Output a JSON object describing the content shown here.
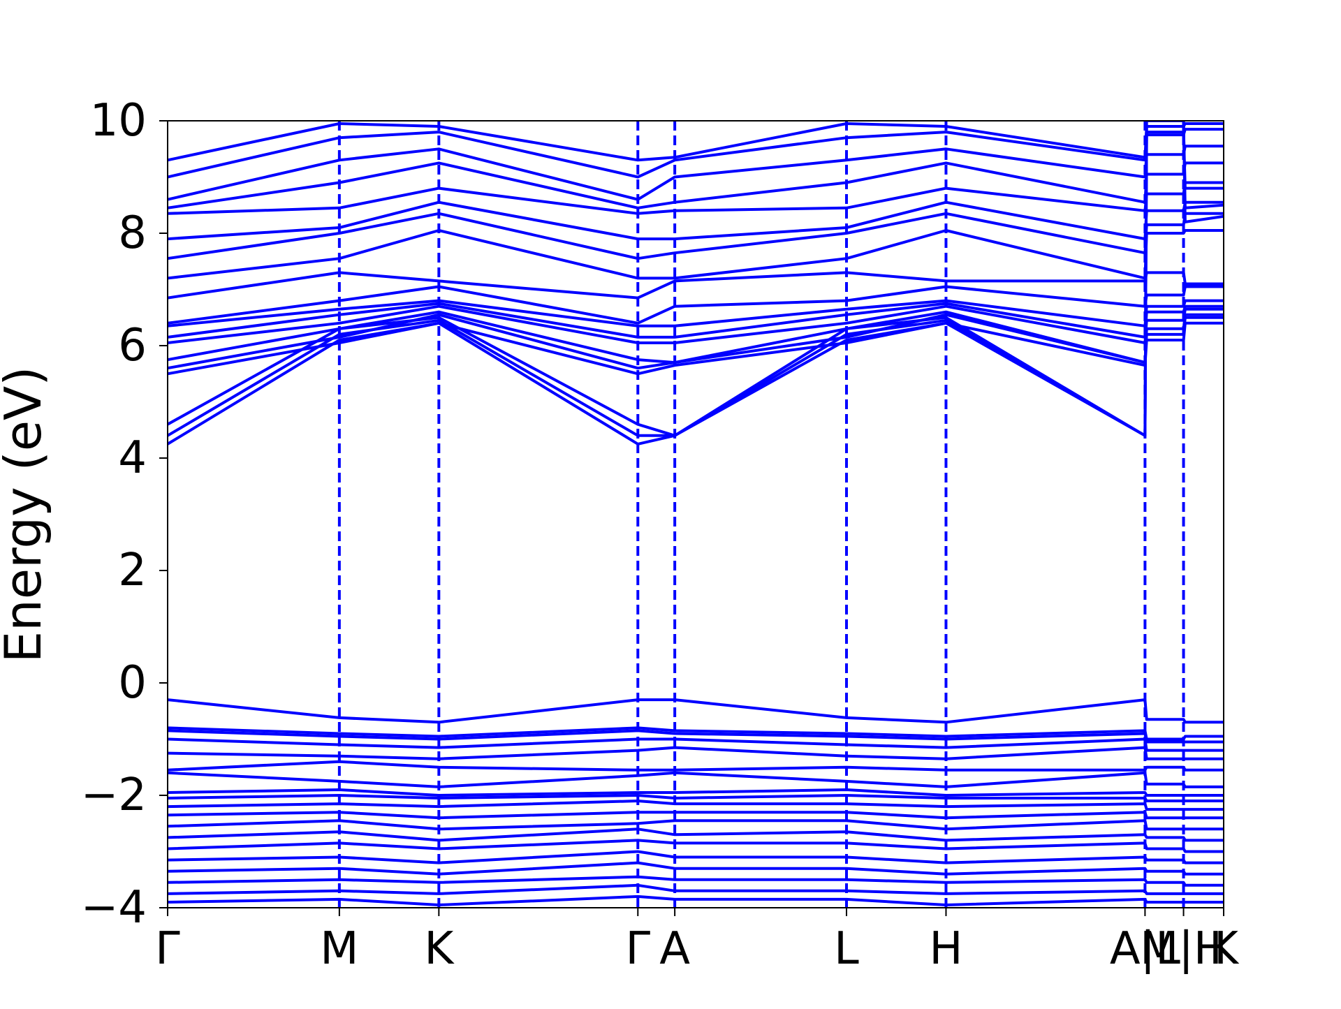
{
  "chart_data": {
    "type": "line",
    "title": "",
    "xlabel": "",
    "ylabel": "Energy (eV)",
    "ylim": [
      -4,
      10
    ],
    "yticks": [
      -4,
      -2,
      0,
      2,
      4,
      6,
      8,
      10
    ],
    "ytick_labels": [
      "−4",
      "−2",
      "0",
      "2",
      "4",
      "6",
      "8",
      "10"
    ],
    "xlim": [
      0,
      6.58
    ],
    "high_symmetry_points": [
      {
        "label": "Γ",
        "x": 0.0
      },
      {
        "label": "M",
        "x": 1.07
      },
      {
        "label": "K",
        "x": 1.69
      },
      {
        "label": "Γ",
        "x": 2.93
      },
      {
        "label": "A",
        "x": 3.16
      },
      {
        "label": "L",
        "x": 4.23
      },
      {
        "label": "H",
        "x": 4.85
      },
      {
        "label": "A|L",
        "x": 6.09
      },
      {
        "label": "M|H",
        "x": 6.33
      },
      {
        "label": "K",
        "x": 6.58
      }
    ],
    "grid": false,
    "line_color": "#0000ff",
    "vline_style": "dashed",
    "series": [
      {
        "x": [
          0,
          1.07,
          1.69,
          2.93,
          3.16,
          4.23,
          4.85,
          6.09,
          6.1,
          6.33,
          6.34,
          6.58
        ],
        "y": [
          4.25,
          6.1,
          6.4,
          4.25,
          4.4,
          6.1,
          6.4,
          4.4,
          10.0,
          10.0,
          8.2,
          8.3
        ]
      },
      {
        "x": [
          0,
          1.07,
          1.69,
          2.93,
          3.16,
          4.23,
          4.85,
          6.09,
          6.1,
          6.33,
          6.34,
          6.58
        ],
        "y": [
          4.4,
          6.2,
          6.45,
          4.4,
          4.4,
          6.2,
          6.45,
          4.4,
          9.9,
          9.9,
          8.45,
          8.5
        ]
      },
      {
        "x": [
          0,
          1.07,
          1.69,
          2.93,
          3.16,
          4.23,
          4.85,
          6.09,
          6.1,
          6.33,
          6.34,
          6.58
        ],
        "y": [
          4.6,
          6.3,
          6.5,
          4.6,
          4.4,
          6.3,
          6.5,
          4.4,
          9.8,
          9.8,
          8.8,
          8.8
        ]
      },
      {
        "x": [
          0,
          1.07,
          1.69,
          2.93,
          3.16,
          4.23,
          4.85,
          6.09,
          6.1,
          6.33,
          6.34,
          6.58
        ],
        "y": [
          5.5,
          6.05,
          6.4,
          5.5,
          5.65,
          6.05,
          6.4,
          5.65,
          6.1,
          6.1,
          6.4,
          6.4
        ]
      },
      {
        "x": [
          0,
          1.07,
          1.69,
          2.93,
          3.16,
          4.23,
          4.85,
          6.09,
          6.1,
          6.33,
          6.34,
          6.58
        ],
        "y": [
          5.6,
          6.15,
          6.55,
          5.6,
          5.7,
          6.15,
          6.55,
          5.7,
          6.2,
          6.2,
          6.5,
          6.5
        ]
      },
      {
        "x": [
          0,
          1.07,
          1.69,
          2.93,
          3.16,
          4.23,
          4.85,
          6.09,
          6.1,
          6.33,
          6.34,
          6.58
        ],
        "y": [
          5.75,
          6.3,
          6.6,
          5.75,
          5.7,
          6.3,
          6.6,
          5.7,
          6.3,
          6.3,
          6.55,
          6.55
        ]
      },
      {
        "x": [
          0,
          1.07,
          1.69,
          2.93,
          3.16,
          4.23,
          4.85,
          6.09,
          6.1,
          6.33,
          6.34,
          6.58
        ],
        "y": [
          6.05,
          6.4,
          6.7,
          6.05,
          6.05,
          6.4,
          6.7,
          6.05,
          6.45,
          6.45,
          6.65,
          6.65
        ]
      },
      {
        "x": [
          0,
          1.07,
          1.69,
          2.93,
          3.16,
          4.23,
          4.85,
          6.09,
          6.1,
          6.33,
          6.34,
          6.58
        ],
        "y": [
          6.15,
          6.55,
          6.75,
          6.15,
          6.15,
          6.55,
          6.75,
          6.15,
          6.6,
          6.6,
          6.7,
          6.7
        ]
      },
      {
        "x": [
          0,
          1.07,
          1.69,
          2.93,
          3.16,
          4.23,
          4.85,
          6.09,
          6.1,
          6.33,
          6.34,
          6.58
        ],
        "y": [
          6.35,
          6.65,
          6.8,
          6.35,
          6.35,
          6.65,
          6.8,
          6.35,
          6.7,
          6.7,
          6.8,
          6.8
        ]
      },
      {
        "x": [
          0,
          1.07,
          1.69,
          2.93,
          3.16,
          4.23,
          4.85,
          6.09,
          6.1,
          6.33,
          6.34,
          6.58
        ],
        "y": [
          6.4,
          6.8,
          7.05,
          6.4,
          6.7,
          6.8,
          7.05,
          6.7,
          6.9,
          6.9,
          7.05,
          7.05
        ]
      },
      {
        "x": [
          0,
          1.07,
          1.69,
          2.93,
          3.16,
          4.23,
          4.85,
          6.09,
          6.1,
          6.33,
          6.34,
          6.58
        ],
        "y": [
          6.85,
          7.3,
          7.15,
          6.85,
          7.15,
          7.3,
          7.15,
          7.15,
          7.3,
          7.3,
          7.1,
          7.1
        ]
      },
      {
        "x": [
          0,
          1.07,
          1.69,
          2.93,
          3.16,
          4.23,
          4.85,
          6.09,
          6.1,
          6.33,
          6.34,
          6.58
        ],
        "y": [
          7.2,
          7.55,
          8.05,
          7.2,
          7.2,
          7.55,
          8.05,
          7.2,
          8.0,
          8.0,
          8.05,
          8.05
        ]
      },
      {
        "x": [
          0,
          1.07,
          1.69,
          2.93,
          3.16,
          4.23,
          4.85,
          6.09,
          6.1,
          6.33,
          6.34,
          6.58
        ],
        "y": [
          7.55,
          8.0,
          8.35,
          7.55,
          7.65,
          8.0,
          8.35,
          7.65,
          8.15,
          8.15,
          8.35,
          8.35
        ]
      },
      {
        "x": [
          0,
          1.07,
          1.69,
          2.93,
          3.16,
          4.23,
          4.85,
          6.09,
          6.1,
          6.33,
          6.34,
          6.58
        ],
        "y": [
          7.9,
          8.1,
          8.55,
          7.9,
          7.9,
          8.1,
          8.55,
          7.9,
          8.4,
          8.4,
          8.55,
          8.55
        ]
      },
      {
        "x": [
          0,
          1.07,
          1.69,
          2.93,
          3.16,
          4.23,
          4.85,
          6.09,
          6.1,
          6.33,
          6.34,
          6.58
        ],
        "y": [
          8.35,
          8.45,
          8.8,
          8.35,
          8.4,
          8.45,
          8.8,
          8.4,
          8.7,
          8.7,
          8.9,
          8.9
        ]
      },
      {
        "x": [
          0,
          1.07,
          1.69,
          2.93,
          3.16,
          4.23,
          4.85,
          6.09,
          6.1,
          6.33,
          6.34,
          6.58
        ],
        "y": [
          8.45,
          8.9,
          9.25,
          8.45,
          8.55,
          8.9,
          9.25,
          8.55,
          9.05,
          9.05,
          9.25,
          9.25
        ]
      },
      {
        "x": [
          0,
          1.07,
          1.69,
          2.93,
          3.16,
          4.23,
          4.85,
          6.09,
          6.1,
          6.33,
          6.34,
          6.58
        ],
        "y": [
          8.6,
          9.3,
          9.5,
          8.6,
          9.0,
          9.3,
          9.5,
          9.0,
          9.4,
          9.4,
          9.55,
          9.55
        ]
      },
      {
        "x": [
          0,
          1.07,
          1.69,
          2.93,
          3.16,
          4.23,
          4.85,
          6.09,
          6.1,
          6.33,
          6.34,
          6.58
        ],
        "y": [
          9.0,
          9.7,
          9.8,
          9.0,
          9.3,
          9.7,
          9.8,
          9.3,
          9.75,
          9.75,
          9.85,
          9.85
        ]
      },
      {
        "x": [
          0,
          1.07,
          1.69,
          2.93,
          3.16,
          4.23,
          4.85,
          6.09,
          6.1,
          6.33,
          6.34,
          6.58
        ],
        "y": [
          9.3,
          9.95,
          9.9,
          9.3,
          9.35,
          9.95,
          9.9,
          9.35,
          9.9,
          9.9,
          9.95,
          9.95
        ]
      },
      {
        "x": [
          0,
          1.07,
          1.69,
          2.93,
          3.16,
          4.23,
          4.85,
          6.09,
          6.1,
          6.33,
          6.34,
          6.58
        ],
        "y": [
          -0.3,
          -0.62,
          -0.7,
          -0.3,
          -0.3,
          -0.62,
          -0.7,
          -0.3,
          -0.65,
          -0.65,
          -0.7,
          -0.7
        ]
      },
      {
        "x": [
          0,
          1.07,
          1.69,
          2.93,
          3.16,
          4.23,
          4.85,
          6.09,
          6.1,
          6.33,
          6.34,
          6.58
        ],
        "y": [
          -0.8,
          -0.9,
          -0.95,
          -0.8,
          -0.85,
          -0.9,
          -0.95,
          -0.85,
          -1.0,
          -1.0,
          -0.95,
          -0.95
        ]
      },
      {
        "x": [
          0,
          1.07,
          1.69,
          2.93,
          3.16,
          4.23,
          4.85,
          6.09,
          6.1,
          6.33,
          6.34,
          6.58
        ],
        "y": [
          -0.85,
          -0.95,
          -1.0,
          -0.85,
          -0.9,
          -0.95,
          -1.0,
          -0.9,
          -1.05,
          -1.05,
          -1.05,
          -1.05
        ]
      },
      {
        "x": [
          0,
          1.07,
          1.69,
          2.93,
          3.16,
          4.23,
          4.85,
          6.09,
          6.1,
          6.33,
          6.34,
          6.58
        ],
        "y": [
          -1.0,
          -1.1,
          -1.15,
          -1.0,
          -1.0,
          -1.1,
          -1.15,
          -1.0,
          -1.2,
          -1.2,
          -1.2,
          -1.2
        ]
      },
      {
        "x": [
          0,
          1.07,
          1.69,
          2.93,
          3.16,
          4.23,
          4.85,
          6.09,
          6.1,
          6.33,
          6.34,
          6.58
        ],
        "y": [
          -1.25,
          -1.3,
          -1.35,
          -1.2,
          -1.15,
          -1.3,
          -1.35,
          -1.15,
          -1.35,
          -1.35,
          -1.35,
          -1.35
        ]
      },
      {
        "x": [
          0,
          1.07,
          1.69,
          2.93,
          3.16,
          4.23,
          4.85,
          6.09,
          6.1,
          6.33,
          6.34,
          6.58
        ],
        "y": [
          -1.55,
          -1.4,
          -1.5,
          -1.55,
          -1.55,
          -1.5,
          -1.55,
          -1.55,
          -1.5,
          -1.5,
          -1.55,
          -1.55
        ]
      },
      {
        "x": [
          0,
          1.07,
          1.69,
          2.93,
          3.16,
          4.23,
          4.85,
          6.09,
          6.1,
          6.33,
          6.34,
          6.58
        ],
        "y": [
          -1.6,
          -1.75,
          -1.85,
          -1.65,
          -1.6,
          -1.75,
          -1.85,
          -1.6,
          -1.8,
          -1.8,
          -1.85,
          -1.85
        ]
      },
      {
        "x": [
          0,
          1.07,
          1.69,
          2.93,
          3.16,
          4.23,
          4.85,
          6.09,
          6.1,
          6.33,
          6.34,
          6.58
        ],
        "y": [
          -1.95,
          -1.9,
          -2.0,
          -1.95,
          -1.95,
          -1.9,
          -2.0,
          -1.95,
          -2.0,
          -2.0,
          -2.0,
          -2.0
        ]
      },
      {
        "x": [
          0,
          1.07,
          1.69,
          2.93,
          3.16,
          4.23,
          4.85,
          6.09,
          6.1,
          6.33,
          6.34,
          6.58
        ],
        "y": [
          -2.05,
          -2.0,
          -2.05,
          -2.0,
          -2.05,
          -2.0,
          -2.05,
          -2.05,
          -2.1,
          -2.1,
          -2.1,
          -2.1
        ]
      },
      {
        "x": [
          0,
          1.07,
          1.69,
          2.93,
          3.16,
          4.23,
          4.85,
          6.09,
          6.1,
          6.33,
          6.34,
          6.58
        ],
        "y": [
          -2.2,
          -2.15,
          -2.2,
          -2.1,
          -2.15,
          -2.15,
          -2.2,
          -2.15,
          -2.25,
          -2.25,
          -2.25,
          -2.25
        ]
      },
      {
        "x": [
          0,
          1.07,
          1.69,
          2.93,
          3.16,
          4.23,
          4.85,
          6.09,
          6.1,
          6.33,
          6.34,
          6.58
        ],
        "y": [
          -2.35,
          -2.3,
          -2.4,
          -2.3,
          -2.3,
          -2.3,
          -2.4,
          -2.3,
          -2.4,
          -2.4,
          -2.4,
          -2.4
        ]
      },
      {
        "x": [
          0,
          1.07,
          1.69,
          2.93,
          3.16,
          4.23,
          4.85,
          6.09,
          6.1,
          6.33,
          6.34,
          6.58
        ],
        "y": [
          -2.55,
          -2.45,
          -2.6,
          -2.5,
          -2.45,
          -2.45,
          -2.6,
          -2.45,
          -2.6,
          -2.6,
          -2.6,
          -2.6
        ]
      },
      {
        "x": [
          0,
          1.07,
          1.69,
          2.93,
          3.16,
          4.23,
          4.85,
          6.09,
          6.1,
          6.33,
          6.34,
          6.58
        ],
        "y": [
          -2.75,
          -2.65,
          -2.8,
          -2.6,
          -2.7,
          -2.65,
          -2.8,
          -2.7,
          -2.75,
          -2.75,
          -2.8,
          -2.8
        ]
      },
      {
        "x": [
          0,
          1.07,
          1.69,
          2.93,
          3.16,
          4.23,
          4.85,
          6.09,
          6.1,
          6.33,
          6.34,
          6.58
        ],
        "y": [
          -2.95,
          -2.85,
          -2.95,
          -2.8,
          -2.85,
          -2.85,
          -2.95,
          -2.85,
          -2.95,
          -2.95,
          -3.0,
          -3.0
        ]
      },
      {
        "x": [
          0,
          1.07,
          1.69,
          2.93,
          3.16,
          4.23,
          4.85,
          6.09,
          6.1,
          6.33,
          6.34,
          6.58
        ],
        "y": [
          -3.15,
          -3.1,
          -3.2,
          -3.0,
          -3.1,
          -3.1,
          -3.2,
          -3.1,
          -3.15,
          -3.15,
          -3.2,
          -3.2
        ]
      },
      {
        "x": [
          0,
          1.07,
          1.69,
          2.93,
          3.16,
          4.23,
          4.85,
          6.09,
          6.1,
          6.33,
          6.34,
          6.58
        ],
        "y": [
          -3.35,
          -3.3,
          -3.4,
          -3.2,
          -3.3,
          -3.3,
          -3.4,
          -3.3,
          -3.35,
          -3.35,
          -3.4,
          -3.4
        ]
      },
      {
        "x": [
          0,
          1.07,
          1.69,
          2.93,
          3.16,
          4.23,
          4.85,
          6.09,
          6.1,
          6.33,
          6.34,
          6.58
        ],
        "y": [
          -3.55,
          -3.5,
          -3.55,
          -3.45,
          -3.5,
          -3.5,
          -3.55,
          -3.5,
          -3.55,
          -3.55,
          -3.6,
          -3.6
        ]
      },
      {
        "x": [
          0,
          1.07,
          1.69,
          2.93,
          3.16,
          4.23,
          4.85,
          6.09,
          6.1,
          6.33,
          6.34,
          6.58
        ],
        "y": [
          -3.75,
          -3.7,
          -3.75,
          -3.6,
          -3.7,
          -3.7,
          -3.75,
          -3.7,
          -3.75,
          -3.75,
          -3.75,
          -3.75
        ]
      },
      {
        "x": [
          0,
          1.07,
          1.69,
          2.93,
          3.16,
          4.23,
          4.85,
          6.09,
          6.1,
          6.33,
          6.34,
          6.58
        ],
        "y": [
          -3.9,
          -3.85,
          -3.95,
          -3.8,
          -3.85,
          -3.85,
          -3.95,
          -3.85,
          -3.9,
          -3.9,
          -3.9,
          -3.9
        ]
      }
    ]
  }
}
